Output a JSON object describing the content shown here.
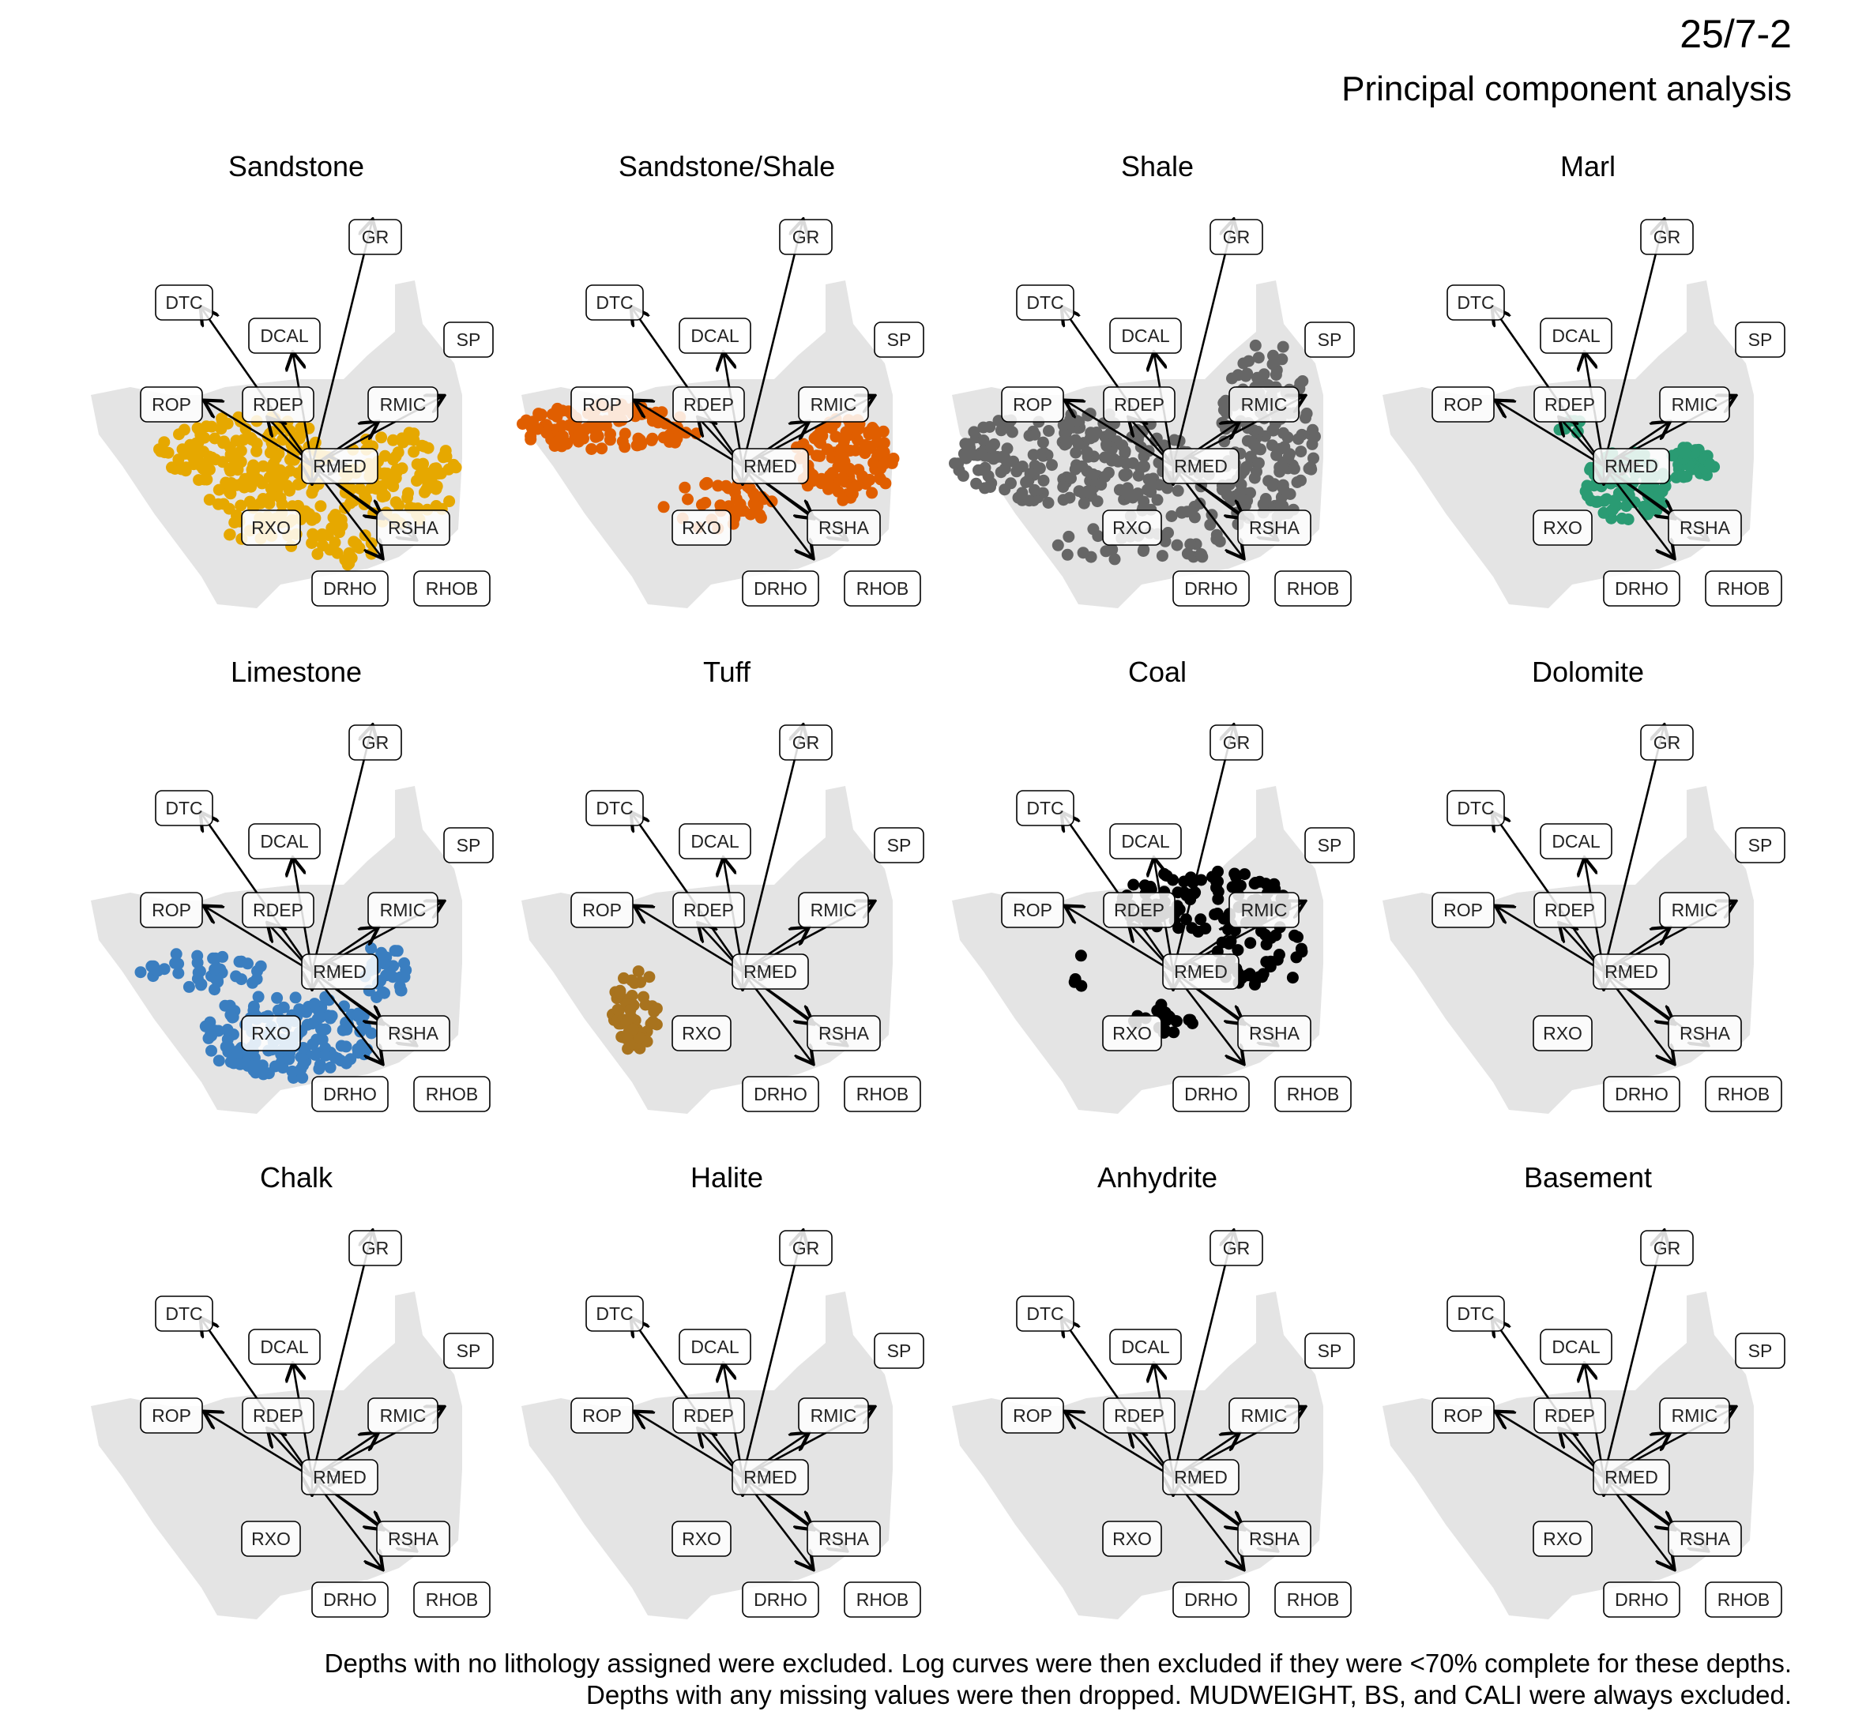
{
  "header": {
    "title": "25/7-2",
    "subtitle": "Principal component analysis"
  },
  "footer": {
    "line1": "Depths with no lithology assigned were excluded. Log curves were then excluded if they were <70% complete for these depths.",
    "line2": "Depths with any missing values were then dropped. MUDWEIGHT, BS, and CALI were always excluded."
  },
  "chart_data": {
    "type": "scatter",
    "description_type": "pca-biplot-small-multiples",
    "variables": [
      "GR",
      "DTC",
      "DCAL",
      "SP",
      "ROP",
      "RDEP",
      "RMIC",
      "RMED",
      "RXO",
      "RSHA",
      "DRHO",
      "RHOB"
    ],
    "background_color": "#e4e4e4",
    "panels": [
      {
        "name": "Sandstone",
        "color": "#E6A800",
        "has_points": true
      },
      {
        "name": "Sandstone/Shale",
        "color": "#E05E00",
        "has_points": true
      },
      {
        "name": "Shale",
        "color": "#666666",
        "has_points": true
      },
      {
        "name": "Marl",
        "color": "#2A9B73",
        "has_points": true
      },
      {
        "name": "Limestone",
        "color": "#3A7EC0",
        "has_points": true
      },
      {
        "name": "Tuff",
        "color": "#A8731E",
        "has_points": true
      },
      {
        "name": "Coal",
        "color": "#000000",
        "has_points": true
      },
      {
        "name": "Dolomite",
        "color": "#999999",
        "has_points": false
      },
      {
        "name": "Chalk",
        "color": "#999999",
        "has_points": false
      },
      {
        "name": "Halite",
        "color": "#999999",
        "has_points": false
      },
      {
        "name": "Anhydrite",
        "color": "#999999",
        "has_points": false
      },
      {
        "name": "Basement",
        "color": "#999999",
        "has_points": false
      }
    ]
  }
}
